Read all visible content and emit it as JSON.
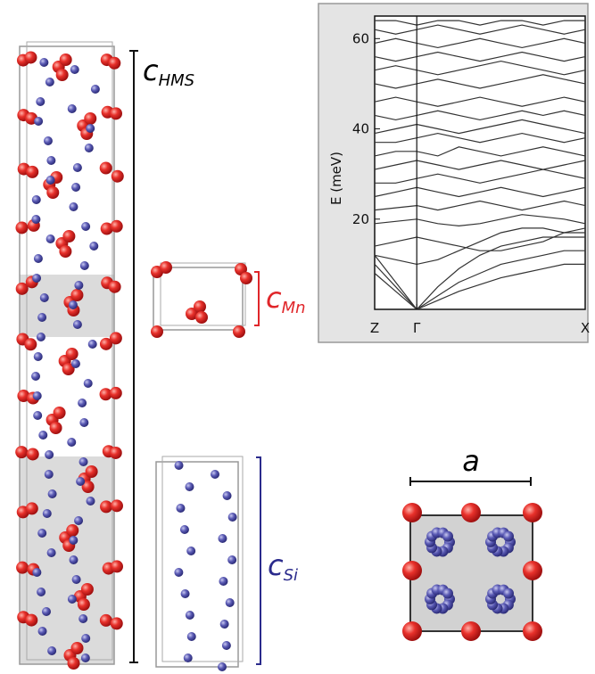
{
  "labels": {
    "c_hms": {
      "main": "c",
      "sub": "HMS"
    },
    "c_mn": {
      "main": "c",
      "sub": "Mn"
    },
    "c_si": {
      "main": "c",
      "sub": "Si"
    },
    "a": "a"
  },
  "chart_data": {
    "type": "line",
    "ylabel": "E (meV)",
    "x": [
      0,
      0.1,
      0.2,
      0.3,
      0.4,
      0.5,
      0.6,
      0.7,
      0.8,
      0.9,
      1.0
    ],
    "xlim": [
      0,
      1
    ],
    "xticks": [
      {
        "value": 0,
        "label": "Z"
      },
      {
        "value": 0.2,
        "label": "Γ"
      },
      {
        "value": 1,
        "label": "X"
      }
    ],
    "ylim": [
      0,
      65
    ],
    "yticks": [
      20,
      40,
      60
    ],
    "color": "#333333",
    "series": [
      {
        "values": [
          8,
          4,
          0,
          5,
          9,
          12,
          14,
          15,
          16,
          16,
          16
        ]
      },
      {
        "values": [
          10,
          5,
          0,
          3,
          6,
          8,
          10,
          11,
          12,
          13,
          13
        ]
      },
      {
        "values": [
          12,
          6,
          0,
          2,
          4,
          5.5,
          7,
          8,
          9,
          10,
          10
        ]
      },
      {
        "values": [
          12,
          11,
          10,
          11,
          13,
          15,
          17,
          18,
          18,
          17,
          17
        ]
      },
      {
        "values": [
          14,
          15,
          16,
          15,
          14,
          13,
          13,
          14,
          15,
          17,
          18
        ]
      },
      {
        "values": [
          19,
          19.5,
          20,
          19,
          18.5,
          19,
          20,
          21,
          20.5,
          20,
          19
        ]
      },
      {
        "values": [
          22,
          22.5,
          23,
          22,
          23,
          24,
          23,
          22,
          23,
          24,
          23
        ]
      },
      {
        "values": [
          25,
          26,
          27,
          26,
          25,
          26,
          27,
          26,
          25,
          26,
          27
        ]
      },
      {
        "values": [
          28,
          28,
          29,
          30,
          29,
          28,
          29,
          30,
          31,
          30,
          29
        ]
      },
      {
        "values": [
          31,
          32,
          33,
          32,
          31,
          32,
          33,
          32,
          31,
          32,
          33
        ]
      },
      {
        "values": [
          34,
          35,
          35,
          34,
          36,
          35,
          34,
          35,
          36,
          35,
          34
        ]
      },
      {
        "values": [
          37,
          37,
          38,
          39,
          38,
          37,
          38,
          39,
          38,
          37,
          38
        ]
      },
      {
        "values": [
          39,
          40,
          41,
          40,
          39,
          40,
          41,
          42,
          41,
          40,
          39
        ]
      },
      {
        "values": [
          43,
          42,
          43,
          44,
          43,
          42,
          43,
          44,
          43,
          44,
          43
        ]
      },
      {
        "values": [
          46,
          47,
          46,
          45,
          46,
          47,
          46,
          45,
          46,
          47,
          46
        ]
      },
      {
        "values": [
          50,
          49,
          50,
          51,
          50,
          49,
          50,
          51,
          52,
          51,
          50
        ]
      },
      {
        "values": [
          53,
          54,
          53,
          52,
          53,
          54,
          55,
          54,
          53,
          52,
          53
        ]
      },
      {
        "values": [
          56,
          55,
          56,
          57,
          56,
          55,
          56,
          57,
          56,
          55,
          56
        ]
      },
      {
        "values": [
          59,
          60,
          59,
          58,
          59,
          60,
          59,
          58,
          59,
          60,
          59
        ]
      },
      {
        "values": [
          62,
          61,
          62,
          63,
          62,
          61,
          62,
          63,
          62,
          61,
          62
        ]
      },
      {
        "values": [
          64,
          64,
          63,
          64,
          64,
          63,
          64,
          64,
          63,
          64,
          64
        ]
      }
    ]
  }
}
